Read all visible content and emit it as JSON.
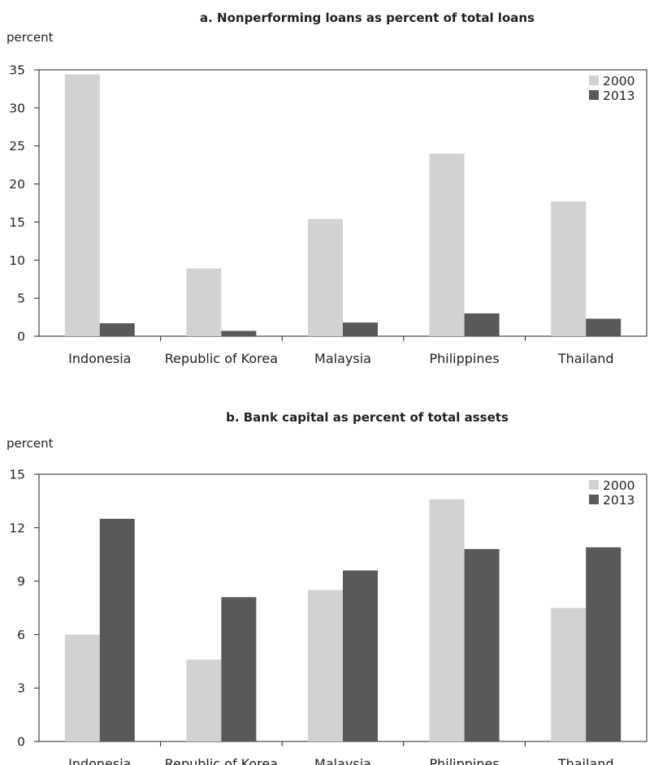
{
  "chart_data": [
    {
      "type": "bar",
      "title": "a. Nonperforming loans as percent of total loans",
      "ylabel": "percent",
      "xlabel": "",
      "categories": [
        "Indonesia",
        "Republic of Korea",
        "Malaysia",
        "Philippines",
        "Thailand"
      ],
      "series": [
        {
          "name": "2000",
          "values": [
            34.4,
            8.9,
            15.4,
            24.0,
            17.7
          ]
        },
        {
          "name": "2013",
          "values": [
            1.7,
            0.7,
            1.8,
            3.0,
            2.3
          ]
        }
      ],
      "ylim": [
        0,
        35
      ],
      "yticks": [
        0,
        5,
        10,
        15,
        20,
        25,
        30,
        35
      ],
      "grid": false,
      "legend": "top-right",
      "colors": {
        "2000": "#d0d2d3",
        "2013": "#58595b"
      }
    },
    {
      "type": "bar",
      "title": "b. Bank capital as percent of total assets",
      "ylabel": "percent",
      "xlabel": "",
      "categories": [
        "Indonesia",
        "Republic of Korea",
        "Malaysia",
        "Philippines",
        "Thailand"
      ],
      "series": [
        {
          "name": "2000",
          "values": [
            6.0,
            4.6,
            8.5,
            13.6,
            7.5
          ]
        },
        {
          "name": "2013",
          "values": [
            12.5,
            8.1,
            9.6,
            10.8,
            10.9
          ]
        }
      ],
      "ylim": [
        0,
        15
      ],
      "yticks": [
        0,
        3,
        6,
        9,
        12,
        15
      ],
      "grid": false,
      "legend": "top-right",
      "colors": {
        "2000": "#d0d2d3",
        "2013": "#58595b"
      }
    }
  ]
}
